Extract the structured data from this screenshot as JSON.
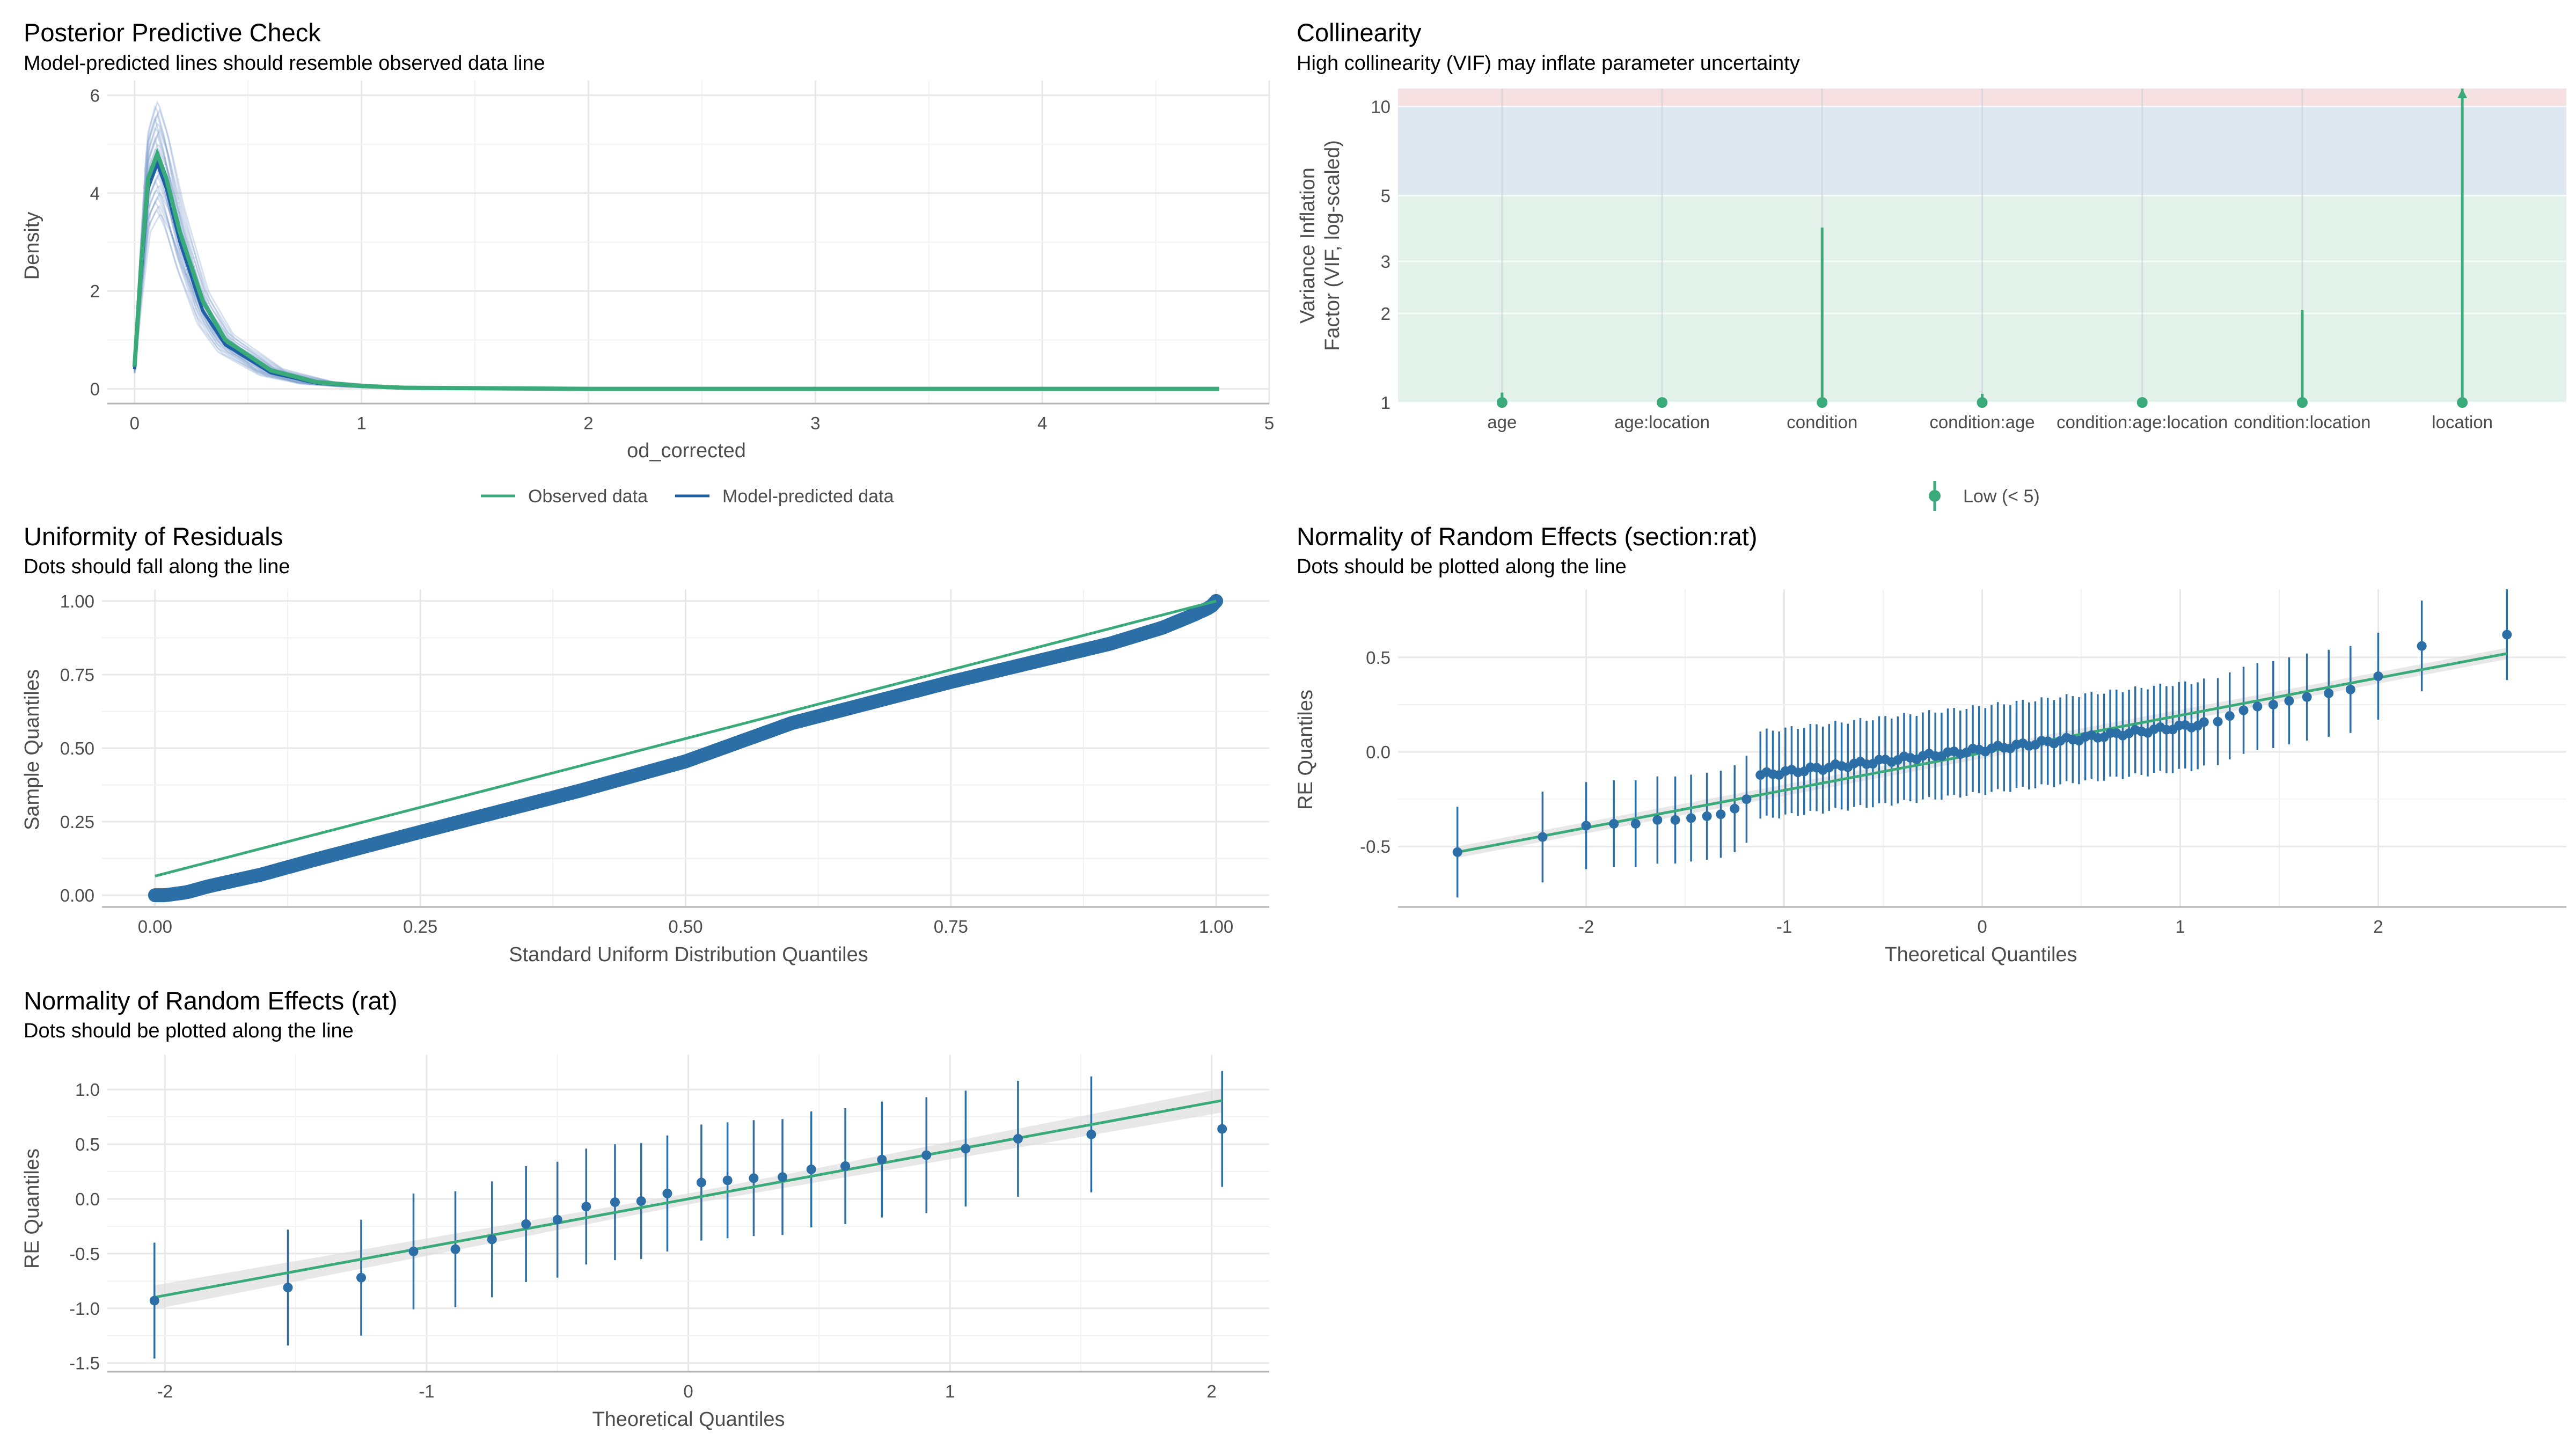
{
  "colors": {
    "observed": "#3aaa7a",
    "predicted": "#1f5fa5",
    "points": "#2c6ea6",
    "refline": "#3aaa7a",
    "grid": "#e8e8e8",
    "zone_low": "#e2f2ea",
    "zone_moderate": "#dde8f1",
    "zone_high": "#f6e0e2"
  },
  "chart_data": [
    {
      "id": "ppc",
      "type": "line",
      "title": "Posterior Predictive Check",
      "subtitle": "Model-predicted lines should resemble observed data line",
      "xlabel": "od_corrected",
      "ylabel": "Density",
      "xlim": [
        -0.12,
        5.0
      ],
      "ylim": [
        -0.3,
        6.3
      ],
      "xticks": [
        0,
        1,
        2,
        3,
        4,
        5
      ],
      "yticks": [
        0,
        2,
        4,
        6
      ],
      "grid": true,
      "legend": {
        "position": "bottom",
        "entries": [
          "Observed data",
          "Model-predicted data"
        ]
      },
      "series": [
        {
          "name": "Observed data",
          "x": [
            0,
            0.03,
            0.06,
            0.1,
            0.14,
            0.2,
            0.3,
            0.4,
            0.6,
            0.8,
            1.0,
            1.2,
            2.0,
            3.0,
            4.0,
            4.78
          ],
          "y": [
            0.45,
            2.6,
            4.3,
            4.8,
            4.3,
            3.2,
            1.8,
            1.0,
            0.38,
            0.14,
            0.06,
            0.02,
            0.0,
            0.0,
            0.0,
            0.0
          ]
        },
        {
          "name": "Model-predicted data",
          "x": [
            0,
            0.03,
            0.06,
            0.1,
            0.14,
            0.2,
            0.3,
            0.4,
            0.6,
            0.8,
            1.0,
            1.2,
            2.0,
            3.0,
            4.0,
            4.78
          ],
          "y": [
            0.4,
            2.4,
            4.1,
            4.6,
            4.1,
            3.0,
            1.6,
            0.9,
            0.33,
            0.12,
            0.05,
            0.02,
            0.0,
            0.0,
            0.0,
            0.0
          ]
        }
      ]
    },
    {
      "id": "vif",
      "type": "scatter",
      "title": "Collinearity",
      "subtitle": "High collinearity (VIF) may inflate parameter uncertainty",
      "ylabel": "Variance Inflation\nFactor (VIF, log-scaled)",
      "yscale": "log",
      "ylim": [
        1,
        11.5
      ],
      "yticks": [
        1,
        2,
        3,
        5,
        10
      ],
      "zones": [
        {
          "name": "low",
          "from": 1,
          "to": 5
        },
        {
          "name": "moderate",
          "from": 5,
          "to": 10
        },
        {
          "name": "high",
          "from": 10,
          "to": 11.5
        }
      ],
      "categories": [
        "age",
        "age:location",
        "condition",
        "condition:age",
        "condition:age:location",
        "condition:location",
        "location"
      ],
      "values": [
        1.0,
        1.0,
        1.0,
        1.0,
        1.0,
        1.0,
        1.0
      ],
      "ci_high": [
        1.08,
        1.03,
        3.9,
        1.07,
        1.03,
        2.05,
        11.5
      ],
      "legend": {
        "position": "bottom",
        "entries": [
          "Low (< 5)"
        ]
      }
    },
    {
      "id": "uniform",
      "type": "scatter",
      "title": "Uniformity of Residuals",
      "subtitle": "Dots should fall along the line",
      "xlabel": "Standard Uniform Distribution Quantiles",
      "ylabel": "Sample Quantiles",
      "xlim": [
        -0.05,
        1.05
      ],
      "ylim": [
        -0.04,
        1.04
      ],
      "xticks": [
        0.0,
        0.25,
        0.5,
        0.75,
        1.0
      ],
      "yticks": [
        0.0,
        0.25,
        0.5,
        0.75,
        1.0
      ],
      "reference_line": {
        "x": [
          0,
          1
        ],
        "y": [
          0.065,
          1.0
        ]
      },
      "curve_x": [
        0,
        0.01,
        0.03,
        0.05,
        0.1,
        0.15,
        0.25,
        0.4,
        0.5,
        0.6,
        0.75,
        0.9,
        0.95,
        0.98,
        0.995,
        1.0
      ],
      "curve_y": [
        0.0,
        0.0,
        0.01,
        0.03,
        0.07,
        0.12,
        0.215,
        0.355,
        0.455,
        0.585,
        0.725,
        0.855,
        0.91,
        0.955,
        0.98,
        1.0
      ]
    },
    {
      "id": "re_section",
      "type": "scatter",
      "title": "Normality of Random Effects (section:rat)",
      "subtitle": "Dots should be plotted along the line",
      "xlabel": "Theoretical Quantiles",
      "ylabel": "RE Quantiles",
      "xlim": [
        -2.95,
        2.95
      ],
      "ylim": [
        -0.82,
        0.86
      ],
      "xticks": [
        -2,
        -1,
        0,
        1,
        2
      ],
      "yticks": [
        -0.5,
        0.0,
        0.5
      ],
      "n_points": 96,
      "reference_line": {
        "x": [
          -2.65,
          2.65
        ],
        "y": [
          -0.53,
          0.52
        ]
      },
      "interval_halfwidth": 0.23,
      "tail_points": {
        "x": [
          -2.65,
          -2.22,
          -2.0,
          -1.86,
          -1.75,
          -1.64,
          -1.55,
          -1.47,
          -1.39,
          -1.32,
          -1.25,
          -1.19,
          1.19,
          1.25,
          1.32,
          1.39,
          1.47,
          1.55,
          1.64,
          1.75,
          1.86,
          2.0,
          2.22,
          2.65
        ],
        "y": [
          -0.53,
          -0.45,
          -0.39,
          -0.38,
          -0.38,
          -0.36,
          -0.36,
          -0.35,
          -0.34,
          -0.33,
          -0.3,
          -0.25,
          0.16,
          0.19,
          0.22,
          0.24,
          0.25,
          0.27,
          0.29,
          0.31,
          0.33,
          0.4,
          0.56,
          0.62
        ]
      }
    },
    {
      "id": "re_rat",
      "type": "scatter",
      "title": "Normality of Random Effects (rat)",
      "subtitle": "Dots should be plotted along the line",
      "xlabel": "Theoretical Quantiles",
      "ylabel": "RE Quantiles",
      "xlim": [
        -2.22,
        2.22
      ],
      "ylim": [
        -1.58,
        1.32
      ],
      "xticks": [
        -2,
        -1,
        0,
        1,
        2
      ],
      "yticks": [
        -1.5,
        -1.0,
        -0.5,
        0.0,
        0.5,
        1.0
      ],
      "reference_line": {
        "x": [
          -2.04,
          2.04
        ],
        "y": [
          -0.9,
          0.9
        ]
      },
      "x": [
        -2.04,
        -1.53,
        -1.25,
        -1.05,
        -0.89,
        -0.75,
        -0.62,
        -0.5,
        -0.39,
        -0.28,
        -0.18,
        -0.08,
        0.05,
        0.15,
        0.25,
        0.36,
        0.47,
        0.6,
        0.74,
        0.91,
        1.06,
        1.26,
        1.54,
        2.04
      ],
      "values": [
        -0.93,
        -0.81,
        -0.72,
        -0.48,
        -0.46,
        -0.37,
        -0.23,
        -0.19,
        -0.07,
        -0.03,
        -0.02,
        0.05,
        0.15,
        0.17,
        0.19,
        0.2,
        0.27,
        0.3,
        0.36,
        0.4,
        0.46,
        0.55,
        0.59,
        0.64
      ],
      "ci_halfwidth": [
        0.53,
        0.53,
        0.53,
        0.53,
        0.53,
        0.53,
        0.53,
        0.53,
        0.53,
        0.53,
        0.53,
        0.53,
        0.53,
        0.53,
        0.53,
        0.53,
        0.53,
        0.53,
        0.53,
        0.53,
        0.53,
        0.53,
        0.53,
        0.53
      ]
    }
  ]
}
